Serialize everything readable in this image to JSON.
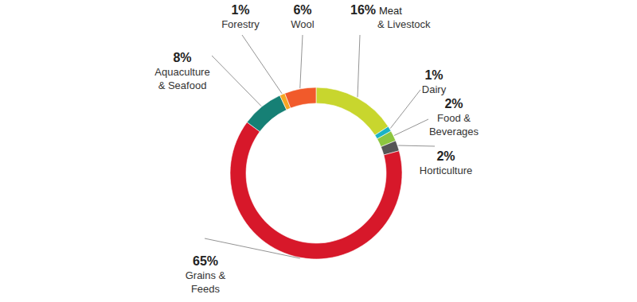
{
  "chart_data": {
    "type": "donut",
    "categories": [
      "Meat & Livestock",
      "Dairy",
      "Food & Beverages",
      "Horticulture",
      "Grains & Feeds",
      "Aquaculture & Seafood",
      "Forestry",
      "Wool"
    ],
    "values": [
      16,
      1,
      2,
      2,
      65,
      8,
      1,
      6
    ],
    "value_labels": [
      "16%",
      "1%",
      "2%",
      "2%",
      "65%",
      "8%",
      "1%",
      "6%"
    ],
    "colors": [
      "#c8d62e",
      "#1ab3c4",
      "#8dc63f",
      "#555555",
      "#d7182a",
      "#168075",
      "#f5a623",
      "#f15a2b"
    ],
    "data_labels": true
  }
}
